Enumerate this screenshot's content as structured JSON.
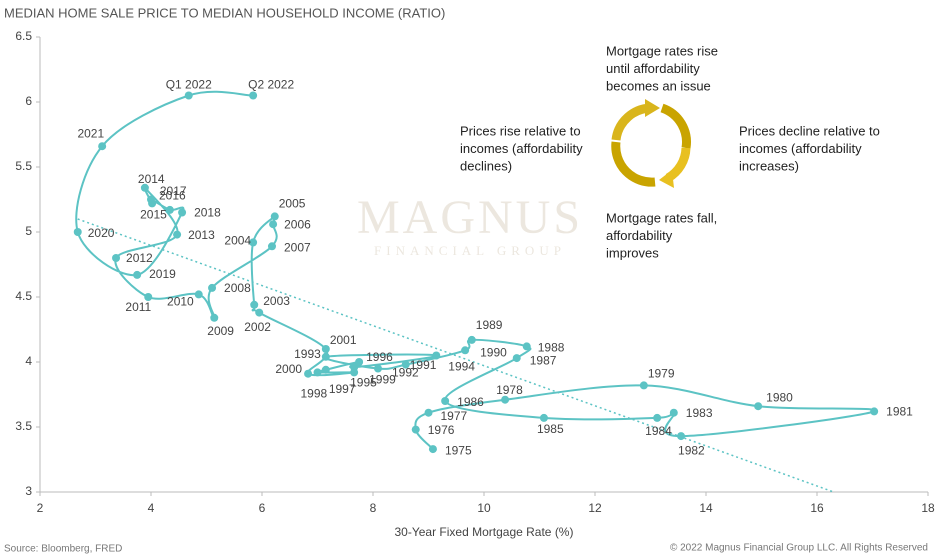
{
  "chart_data": {
    "type": "scatter",
    "title": "MEDIAN HOME SALE PRICE TO MEDIAN HOUSEHOLD INCOME (RATIO)",
    "x_label": "30-Year Fixed Mortgage Rate (%)",
    "source": "Source: Bloomberg, FRED",
    "copyright": "© 2022 Magnus Financial Group LLC. All Rights Reserved",
    "watermark": [
      "MAGNUS",
      "FINANCIAL GROUP"
    ],
    "color": "#5cc3c4",
    "connected": true,
    "xlim": [
      2,
      18
    ],
    "ylim": [
      3,
      6.5
    ],
    "xticks": [
      2,
      4,
      6,
      8,
      10,
      12,
      14,
      16,
      18
    ],
    "yticks": [
      3,
      3.5,
      4,
      4.5,
      5,
      5.5,
      6,
      6.5
    ],
    "point_labels": [
      "1975",
      "1976",
      "1977",
      "1978",
      "1979",
      "1980",
      "1981",
      "1982",
      "1983",
      "1984",
      "1985",
      "1986",
      "1987",
      "1988",
      "1989",
      "1990",
      "1991",
      "1992",
      "1993",
      "1994",
      "1995",
      "1996",
      "1997",
      "1998",
      "1999",
      "2000",
      "2001",
      "2002",
      "2003",
      "2004",
      "2005",
      "2006",
      "2007",
      "2008",
      "2009",
      "2010",
      "2011",
      "2012",
      "2013",
      "2014",
      "2015",
      "2016",
      "2017",
      "2018",
      "2019",
      "2020",
      "2021",
      "Q1 2022",
      "Q2 2022"
    ],
    "x": [
      9.08,
      8.77,
      9.0,
      10.38,
      12.88,
      14.94,
      17.03,
      13.55,
      13.42,
      13.12,
      11.08,
      9.3,
      10.59,
      10.77,
      9.78,
      9.66,
      8.59,
      8.09,
      7.15,
      9.14,
      7.66,
      7.75,
      7.15,
      7.0,
      7.66,
      6.83,
      7.15,
      5.95,
      5.86,
      5.84,
      6.23,
      6.2,
      6.18,
      5.1,
      5.14,
      4.86,
      3.95,
      3.37,
      4.47,
      3.89,
      4.02,
      4.0,
      4.34,
      4.56,
      3.75,
      2.68,
      3.12,
      4.68,
      5.84
    ],
    "values": [
      3.33,
      3.48,
      3.61,
      3.71,
      3.82,
      3.66,
      3.62,
      3.43,
      3.61,
      3.57,
      3.57,
      3.7,
      4.03,
      4.12,
      4.17,
      4.09,
      3.98,
      3.95,
      4.04,
      4.05,
      3.96,
      4.0,
      3.94,
      3.92,
      3.92,
      3.91,
      4.1,
      4.38,
      4.44,
      4.92,
      5.12,
      5.06,
      4.89,
      4.57,
      4.34,
      4.52,
      4.5,
      4.8,
      4.98,
      5.34,
      5.22,
      5.25,
      5.17,
      5.15,
      4.67,
      5.0,
      5.66,
      6.05,
      6.05
    ],
    "trendline": {
      "x": [
        2.68,
        16.3
      ],
      "values": [
        5.1,
        3.0
      ]
    },
    "annotations": [
      [
        "Mortgage rates rise",
        "until affordability",
        "becomes an issue"
      ],
      [
        "Prices rise relative to",
        "incomes (affordability",
        "declines)"
      ],
      [
        "Prices decline relative to",
        "incomes (affordability",
        "increases)"
      ],
      [
        "Mortgage rates fall,",
        "affordability",
        "improves"
      ]
    ]
  }
}
